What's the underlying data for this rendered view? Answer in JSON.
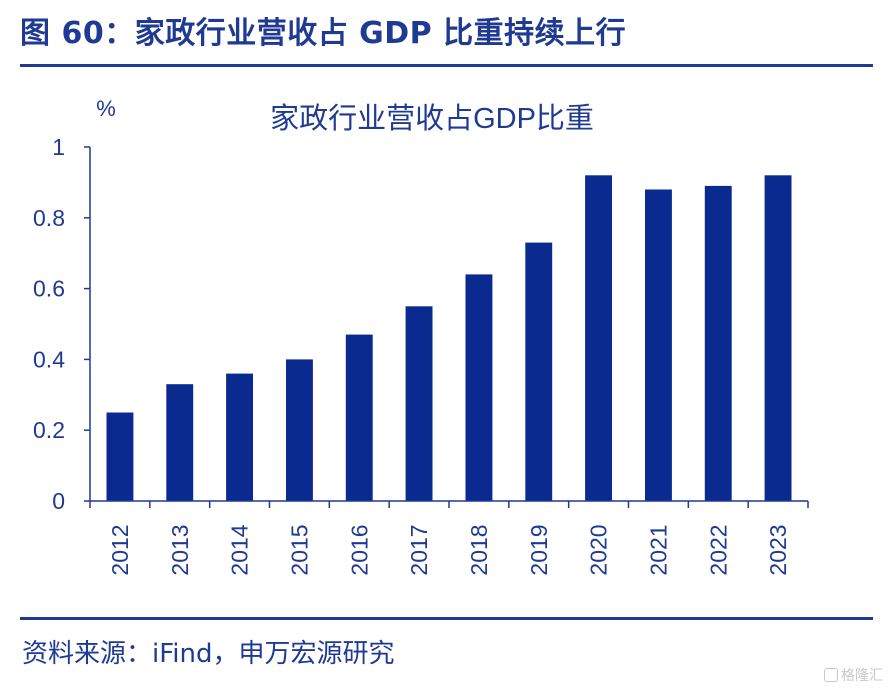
{
  "figure": {
    "header": "图 60：家政行业营收占 GDP 比重持续上行",
    "source": "资料来源：iFind，申万宏源研究",
    "watermark": "格隆汇"
  },
  "colors": {
    "brand": "#1f3a93",
    "bar": "#0a2a8f",
    "axis": "#1f3a93"
  },
  "chart_data": {
    "type": "bar",
    "title": "家政行业营收占GDP比重",
    "unit_label": "%",
    "categories": [
      "2012",
      "2013",
      "2014",
      "2015",
      "2016",
      "2017",
      "2018",
      "2019",
      "2020",
      "2021",
      "2022",
      "2023"
    ],
    "series": [
      {
        "values": [
          0.25,
          0.33,
          0.36,
          0.4,
          0.47,
          0.55,
          0.64,
          0.73,
          0.92,
          0.88,
          0.89,
          0.92
        ]
      }
    ],
    "ylim": [
      0,
      1
    ],
    "yticks": [
      0,
      0.2,
      0.4,
      0.6,
      0.8,
      1
    ],
    "ytick_labels": [
      "0",
      "0.2",
      "0.4",
      "0.6",
      "0.8",
      "1"
    ],
    "grid": false,
    "legend": "none"
  }
}
